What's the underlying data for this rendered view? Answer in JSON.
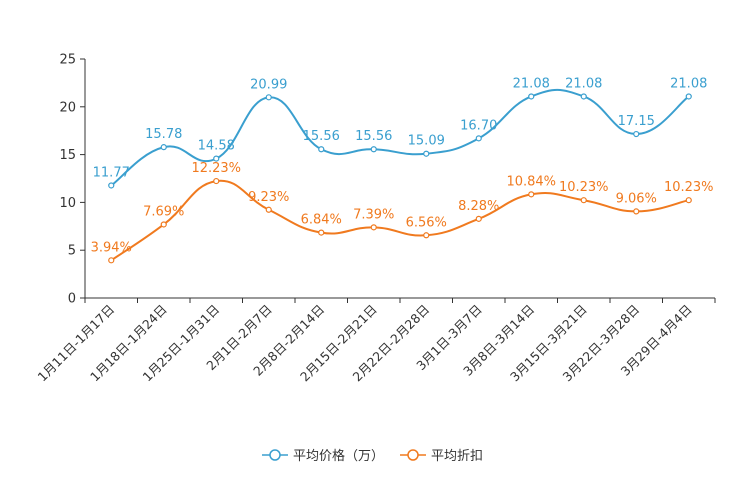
{
  "chart_data": {
    "type": "line",
    "categories": [
      "1月11日-1月17日",
      "1月18日-1月24日",
      "1月25日-1月31日",
      "2月1日-2月7日",
      "2月8日-2月14日",
      "2月15日-2月21日",
      "2月22日-2月28日",
      "3月1日-3月7日",
      "3月8日-3月14日",
      "3月15日-3月21日",
      "3月22日-3月28日",
      "3月29日-4月4日"
    ],
    "ylim": [
      0,
      25
    ],
    "yticks": [
      0,
      5,
      10,
      15,
      20,
      25
    ],
    "series": [
      {
        "name": "平均价格（万）",
        "color": "#3a9fcf",
        "values": [
          11.77,
          15.78,
          14.58,
          20.99,
          15.56,
          15.56,
          15.09,
          16.7,
          21.08,
          21.08,
          17.15,
          21.08
        ],
        "labels": [
          "11.77",
          "15.78",
          "14.58",
          "20.99",
          "15.56",
          "15.56",
          "15.09",
          "16.70",
          "21.08",
          "21.08",
          "17.15",
          "21.08"
        ]
      },
      {
        "name": "平均折扣",
        "color": "#f07a1f",
        "values": [
          3.94,
          7.69,
          12.23,
          9.23,
          6.84,
          7.39,
          6.56,
          8.28,
          10.84,
          10.23,
          9.06,
          10.23
        ],
        "labels": [
          "3.94%",
          "7.69%",
          "12.23%",
          "9.23%",
          "6.84%",
          "7.39%",
          "6.56%",
          "8.28%",
          "10.84%",
          "10.23%",
          "9.06%",
          "10.23%"
        ]
      }
    ],
    "legend_position": "bottom-center",
    "grid": false
  }
}
